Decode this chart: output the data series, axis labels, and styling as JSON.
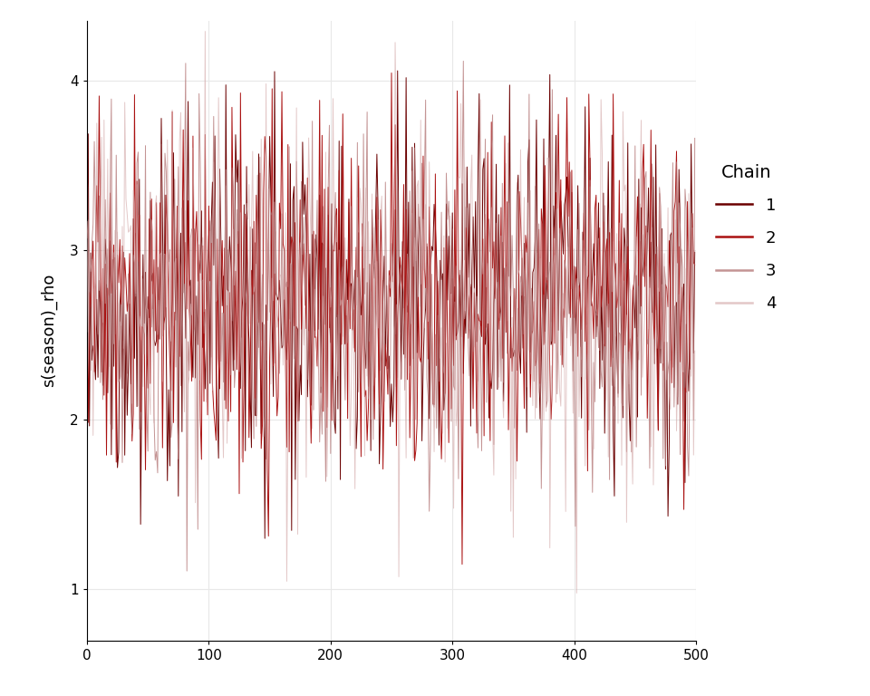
{
  "title": "",
  "ylabel": "s(season)_rho",
  "xlabel": "",
  "xlim": [
    0,
    500
  ],
  "ylim": [
    0.7,
    4.35
  ],
  "yticks": [
    1,
    2,
    3,
    4
  ],
  "xticks": [
    0,
    100,
    200,
    300,
    400,
    500
  ],
  "n_samples": 500,
  "chain_colors": [
    "#6B0000",
    "#AA1111",
    "#B07070",
    "#D4AAAA"
  ],
  "chain_alphas": [
    1.0,
    1.0,
    0.75,
    0.65
  ],
  "chain_linewidths": [
    0.7,
    0.7,
    0.7,
    0.7
  ],
  "chain_labels": [
    "1",
    "2",
    "3",
    "4"
  ],
  "mean_val": 2.7,
  "std_val": 0.52,
  "background_color": "#FFFFFF",
  "grid_color": "#E8E8E8",
  "seed": 42
}
